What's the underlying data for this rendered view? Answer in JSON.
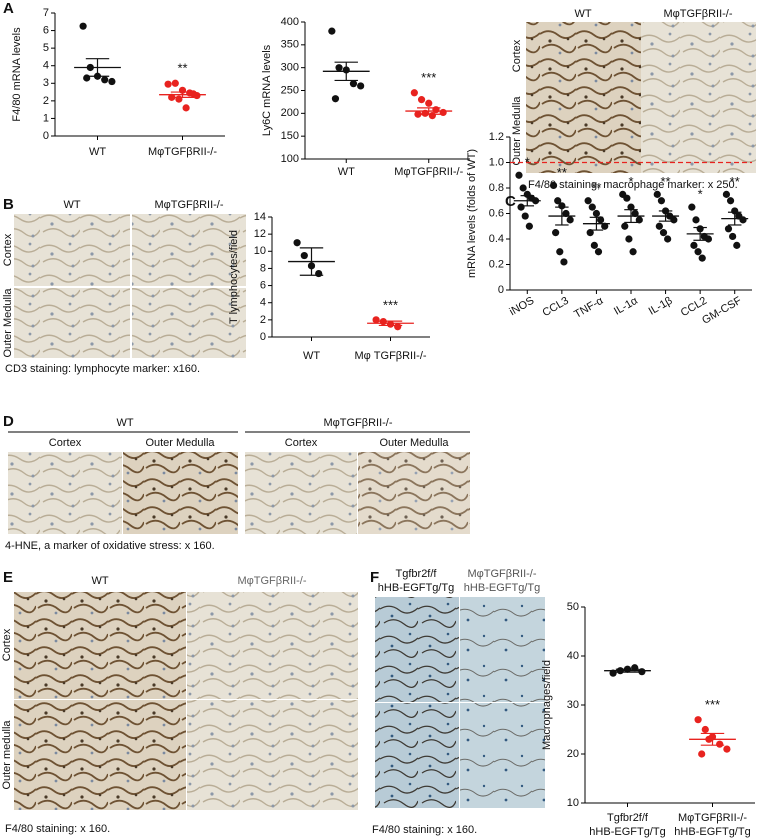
{
  "panels": {
    "A": {
      "letter": "A",
      "columns": [
        "WT",
        "MφTGFβRII-/-"
      ],
      "rows": [
        "Cortex",
        "Outer Medulla"
      ],
      "caption": "F4/80 staining, macrophage marker: x 250."
    },
    "B": {
      "letter": "B",
      "columns": [
        "WT",
        "MφTGFβRII-/-"
      ],
      "rows": [
        "Cortex",
        "Outer Medulla"
      ],
      "caption": "CD3 staining: lymphocyte marker: x160."
    },
    "C": {
      "letter": "C"
    },
    "D": {
      "letter": "D",
      "groups": [
        "WT",
        "MφTGFβRII-/-"
      ],
      "columns": [
        "Cortex",
        "Outer Medulla",
        "Cortex",
        "Outer Medulla"
      ],
      "caption": "4-HNE, a marker of oxidative stress: x 160."
    },
    "E": {
      "letter": "E",
      "columns": [
        "WT",
        "MφTGFβRII-/-"
      ],
      "rows": [
        "Cortex",
        "Outer medulla"
      ],
      "caption": "F4/80 staining: x 160."
    },
    "F": {
      "letter": "F",
      "columns": [
        [
          "Tgfbr2f/f",
          "hHB-EGFTg/Tg"
        ],
        [
          "MφTGFβRII-/-",
          "hHB-EGFTg/Tg"
        ]
      ],
      "caption": "F4/80 staining: x 160."
    }
  },
  "chart_data": [
    {
      "type": "dot",
      "ylabel": "F4/80 mRNA levels",
      "categories": [
        "WT",
        "MφTGFβRII-/-"
      ],
      "colors": [
        "#111111",
        "#e8231f"
      ],
      "points": [
        [
          6.25,
          3.9,
          3.4,
          3.2,
          3.1,
          3.3
        ],
        [
          2.95,
          3.0,
          2.6,
          2.45,
          2.3,
          2.2,
          2.1,
          1.6,
          2.4
        ]
      ],
      "means": [
        3.9,
        2.35
      ],
      "errors": [
        0.5,
        0.15
      ],
      "annotations": [
        null,
        "**"
      ],
      "ylim": [
        0,
        7
      ],
      "yticks": [
        0,
        1,
        2,
        3,
        4,
        5,
        6,
        7
      ]
    },
    {
      "type": "dot",
      "ylabel": "Ly6C mRNA levels",
      "categories": [
        "WT",
        "MφTGFβRII-/-"
      ],
      "colors": [
        "#111111",
        "#e8231f"
      ],
      "points": [
        [
          380,
          300,
          295,
          265,
          260,
          232
        ],
        [
          245,
          230,
          222,
          208,
          202,
          198,
          200,
          195
        ]
      ],
      "means": [
        292,
        205
      ],
      "errors": [
        20,
        7
      ],
      "annotations": [
        null,
        "***"
      ],
      "ylim": [
        100,
        400
      ],
      "yticks": [
        100,
        150,
        200,
        250,
        300,
        350,
        400
      ]
    },
    {
      "type": "dot",
      "ylabel": "T lymphocytes/field",
      "categories": [
        "WT",
        "Mφ TGFβRII-/-"
      ],
      "colors": [
        "#111111",
        "#e8231f"
      ],
      "points": [
        [
          11,
          9.5,
          8.3,
          7.4
        ],
        [
          2.0,
          1.8,
          1.5,
          1.2
        ]
      ],
      "means": [
        8.8,
        1.6
      ],
      "errors": [
        1.6,
        0.25
      ],
      "annotations": [
        null,
        "***"
      ],
      "ylim": [
        0,
        14
      ],
      "yticks": [
        0,
        2,
        4,
        6,
        8,
        10,
        12,
        14
      ]
    },
    {
      "type": "dot",
      "ylabel": "mRNA levels (folds of WT)",
      "categories": [
        "iNOS",
        "CCL3",
        "TNF-α",
        "IL-1α",
        "IL-1β",
        "CCL2",
        "GM-CSF"
      ],
      "colors": [
        "#111111",
        "#111111",
        "#111111",
        "#111111",
        "#111111",
        "#111111",
        "#111111"
      ],
      "points": [
        [
          0.9,
          0.8,
          0.75,
          0.72,
          0.7,
          0.65,
          0.58,
          0.5
        ],
        [
          0.82,
          0.7,
          0.66,
          0.6,
          0.55,
          0.45,
          0.3,
          0.22
        ],
        [
          0.7,
          0.65,
          0.6,
          0.55,
          0.5,
          0.45,
          0.35,
          0.3
        ],
        [
          0.75,
          0.72,
          0.65,
          0.6,
          0.55,
          0.5,
          0.4,
          0.3
        ],
        [
          0.75,
          0.7,
          0.62,
          0.58,
          0.55,
          0.5,
          0.45,
          0.4
        ],
        [
          0.65,
          0.55,
          0.48,
          0.42,
          0.4,
          0.35,
          0.3,
          0.25
        ],
        [
          0.75,
          0.7,
          0.62,
          0.58,
          0.55,
          0.48,
          0.42,
          0.35
        ]
      ],
      "means": [
        0.7,
        0.58,
        0.52,
        0.58,
        0.58,
        0.44,
        0.56
      ],
      "errors": [
        0.04,
        0.07,
        0.05,
        0.05,
        0.04,
        0.05,
        0.05
      ],
      "annotations": [
        "*",
        "**",
        "**",
        "*",
        "**",
        "*",
        "**"
      ],
      "reference_line": {
        "value": 1,
        "color": "#e8231f"
      },
      "ylim": [
        0,
        1.2
      ],
      "yticks": [
        0,
        0.2,
        0.4,
        0.6,
        0.8,
        {
          "value": 1,
          "label": "1.0"
        },
        1.2
      ]
    },
    {
      "type": "dot",
      "ylabel": "Macrophages/field",
      "categories": [
        "Tgfbr2f/f hHB-EGFTg/Tg",
        "MφTGFβRII-/- hHB-EGFTg/Tg"
      ],
      "colors": [
        "#111111",
        "#e8231f"
      ],
      "points": [
        [
          36.5,
          37,
          37.3,
          37.6,
          36.8
        ],
        [
          27,
          25,
          23.5,
          22,
          21,
          20,
          23
        ]
      ],
      "means": [
        37,
        23
      ],
      "errors": [
        0.3,
        1.2
      ],
      "annotations": [
        null,
        "***"
      ],
      "ylim": [
        10,
        50
      ],
      "yticks": [
        10,
        20,
        30,
        40,
        50
      ]
    }
  ]
}
